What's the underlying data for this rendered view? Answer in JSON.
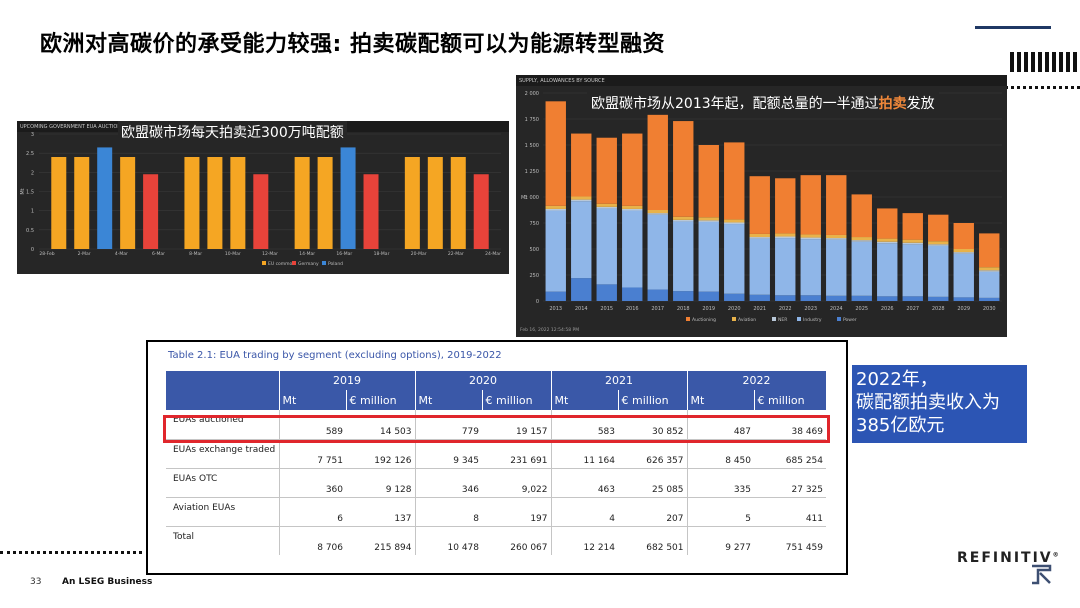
{
  "slide": {
    "title": "欧洲对高碳价的承受能力较强: 拍卖碳配额可以为能源转型融资",
    "page_number": "33",
    "footer_text": "An LSEG Business",
    "brand": "REFINITIV",
    "brand_mark_symbol": "®",
    "accent_color": "#1f3864"
  },
  "left_chart": {
    "overlay": "欧盟碳市场每天拍卖近300万吨配额",
    "header": "UPCOMING GOVERNMENT EUA AUCTIONS",
    "ylabel": "Mt"
  },
  "right_chart": {
    "overlay_prefix": "欧盟碳市场从2013年起，配额总量的一半通过",
    "overlay_highlight": "拍卖",
    "overlay_suffix": "发放",
    "header": "SUPPLY, ALLOWANCES BY SOURCE",
    "timestamp": "Feb 16, 2022 12:54:58 PM",
    "ylabel": "Mt"
  },
  "chart_data": [
    {
      "type": "bar",
      "title": "Upcoming government EUA auctions",
      "ylabel": "Mt",
      "ylim": [
        0,
        3
      ],
      "yticks": [
        "0",
        "0.5",
        "1",
        "1.5",
        "2",
        "2.5",
        "3"
      ],
      "tick_labels": [
        "28-Feb",
        "2-Mar",
        "4-Mar",
        "6-Mar",
        "8-Mar",
        "10-Mar",
        "12-Mar",
        "14-Mar",
        "16-Mar",
        "18-Mar",
        "20-Mar",
        "22-Mar",
        "24-Mar"
      ],
      "legend": [
        "EU common",
        "Germany",
        "Poland"
      ],
      "colors": [
        "#f5a623",
        "#e8433a",
        "#3b86d6"
      ],
      "bars": [
        {
          "series": 0,
          "value": 2.4
        },
        {
          "series": 0,
          "value": 2.4
        },
        {
          "series": 2,
          "value": 2.65
        },
        {
          "series": 0,
          "value": 2.4
        },
        {
          "series": 1,
          "value": 1.95
        },
        {
          "series": 0,
          "value": 2.4
        },
        {
          "series": 0,
          "value": 2.4
        },
        {
          "series": 0,
          "value": 2.4
        },
        {
          "series": 1,
          "value": 1.95
        },
        {
          "series": 0,
          "value": 2.4
        },
        {
          "series": 0,
          "value": 2.4
        },
        {
          "series": 2,
          "value": 2.65
        },
        {
          "series": 1,
          "value": 1.95
        },
        {
          "series": 0,
          "value": 2.4
        },
        {
          "series": 0,
          "value": 2.4
        },
        {
          "series": 0,
          "value": 2.4
        },
        {
          "series": 1,
          "value": 1.95
        }
      ]
    },
    {
      "type": "bar",
      "stacked": true,
      "title": "Supply, allowances by source",
      "ylabel": "Mt",
      "ylim": [
        0,
        2000
      ],
      "yticks": [
        "0",
        "250",
        "500",
        "750",
        "1 000",
        "1 250",
        "1 500",
        "1 750",
        "2 000"
      ],
      "categories": [
        "2013",
        "2014",
        "2015",
        "2016",
        "2017",
        "2018",
        "2019",
        "2020",
        "2021",
        "2022",
        "2023",
        "2024",
        "2025",
        "2026",
        "2027",
        "2028",
        "2029",
        "2030"
      ],
      "series": [
        {
          "name": "Power",
          "color": "#4a7fd0",
          "values": [
            90,
            220,
            160,
            130,
            110,
            95,
            90,
            70,
            60,
            55,
            55,
            50,
            50,
            45,
            45,
            40,
            35,
            30
          ]
        },
        {
          "name": "Industry",
          "color": "#8fb6e8",
          "values": [
            780,
            740,
            730,
            740,
            720,
            670,
            670,
            670,
            540,
            550,
            540,
            540,
            520,
            510,
            500,
            490,
            420,
            250
          ]
        },
        {
          "name": "NER",
          "color": "#b9c8d8",
          "values": [
            15,
            15,
            15,
            15,
            15,
            15,
            15,
            15,
            15,
            15,
            15,
            15,
            15,
            15,
            15,
            15,
            15,
            15
          ]
        },
        {
          "name": "Aviation",
          "color": "#e8b24a",
          "values": [
            30,
            30,
            30,
            30,
            30,
            30,
            30,
            30,
            30,
            30,
            30,
            30,
            30,
            30,
            30,
            30,
            30,
            30
          ]
        },
        {
          "name": "Auctioning",
          "color": "#f07f32",
          "values": [
            1005,
            605,
            635,
            695,
            915,
            920,
            695,
            740,
            555,
            530,
            570,
            575,
            410,
            290,
            255,
            255,
            250,
            325
          ]
        }
      ],
      "legend_order": [
        "Auctioning",
        "Aviation",
        "NER",
        "Industry",
        "Power"
      ]
    }
  ],
  "table": {
    "caption": "Table 2.1: EUA trading by segment (excluding options), 2019-2022",
    "years": [
      "2019",
      "2020",
      "2021",
      "2022"
    ],
    "sub_mt": "Mt",
    "sub_million": "€ million",
    "rows": [
      {
        "label": "EUAs auctioned",
        "values": [
          "589",
          "14 503",
          "779",
          "19 157",
          "583",
          "30 852",
          "487",
          "38 469"
        ]
      },
      {
        "label": "EUAs exchange traded",
        "values": [
          "7 751",
          "192 126",
          "9 345",
          "231 691",
          "11 164",
          "626 357",
          "8 450",
          "685 254"
        ]
      },
      {
        "label": "EUAs OTC",
        "values": [
          "360",
          "9 128",
          "346",
          "9,022",
          "463",
          "25 085",
          "335",
          "27 325"
        ]
      },
      {
        "label": "Aviation EUAs",
        "values": [
          "6",
          "137",
          "8",
          "197",
          "4",
          "207",
          "5",
          "411"
        ]
      },
      {
        "label": "Total",
        "values": [
          "8 706",
          "215 894",
          "10 478",
          "260 067",
          "12 214",
          "682 501",
          "9 277",
          "751 459"
        ]
      }
    ],
    "highlight_color": "#e0262c"
  },
  "callout": {
    "line1": "2022年，",
    "line2": "碳配额拍卖收入为",
    "line3": "385亿欧元",
    "color": "#2c55b4"
  }
}
